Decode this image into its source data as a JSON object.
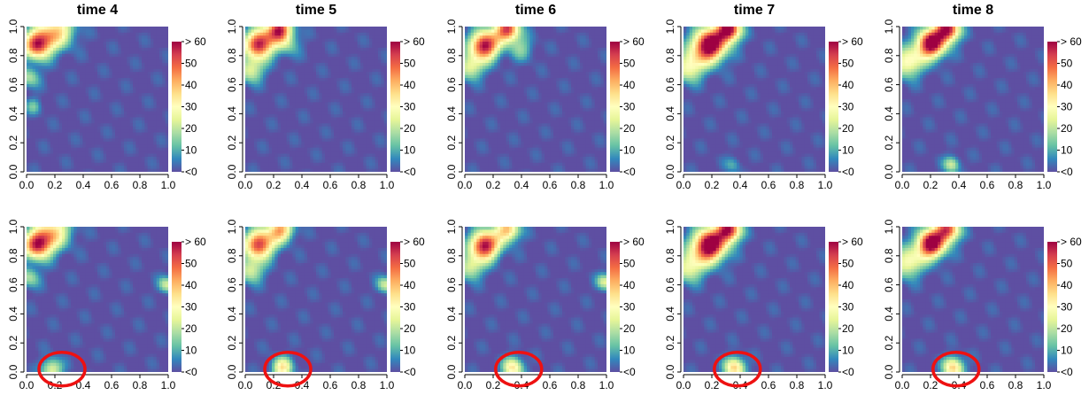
{
  "chart_data": {
    "type": "heatmap",
    "colorbar": {
      "labels": [
        "> 60",
        "50",
        "40",
        "30",
        "20",
        "10",
        "<0"
      ],
      "colors": [
        "#9E0142",
        "#D53E4F",
        "#F46D43",
        "#FDAE61",
        "#FEE08B",
        "#FFFFBF",
        "#E6F598",
        "#ABDDA4",
        "#66C2A5",
        "#3288BD",
        "#5E4FA2"
      ],
      "range": [
        0,
        60
      ]
    },
    "xlim": [
      0,
      1
    ],
    "ylim": [
      0,
      1
    ],
    "x_ticks": [
      "0.0",
      "0.2",
      "0.4",
      "0.6",
      "0.8",
      "1.0"
    ],
    "y_ticks": [
      "0.0",
      "0.2",
      "0.4",
      "0.6",
      "0.8",
      "1.0"
    ],
    "panels": [
      {
        "title": "time 4",
        "row": 0,
        "col": 0,
        "blobs": [
          [
            0.08,
            0.88,
            0.07,
            58
          ],
          [
            0.22,
            0.97,
            0.08,
            35
          ],
          [
            0.02,
            0.65,
            0.05,
            18
          ],
          [
            0.05,
            0.45,
            0.04,
            12
          ]
        ]
      },
      {
        "title": "time 5",
        "row": 0,
        "col": 1,
        "blobs": [
          [
            0.1,
            0.88,
            0.07,
            60
          ],
          [
            0.24,
            0.98,
            0.06,
            55
          ],
          [
            0.04,
            0.7,
            0.06,
            25
          ],
          [
            0.3,
            0.88,
            0.06,
            14
          ]
        ]
      },
      {
        "title": "time 6",
        "row": 0,
        "col": 2,
        "blobs": [
          [
            0.14,
            0.87,
            0.07,
            62
          ],
          [
            0.3,
            0.98,
            0.06,
            55
          ],
          [
            0.04,
            0.72,
            0.06,
            26
          ],
          [
            0.4,
            0.85,
            0.06,
            14
          ]
        ]
      },
      {
        "title": "time 7",
        "row": 0,
        "col": 3,
        "blobs": [
          [
            0.18,
            0.87,
            0.08,
            70
          ],
          [
            0.32,
            0.98,
            0.06,
            62
          ],
          [
            0.04,
            0.72,
            0.07,
            30
          ],
          [
            0.35,
            0.05,
            0.04,
            10
          ]
        ]
      },
      {
        "title": "time 8",
        "row": 0,
        "col": 4,
        "blobs": [
          [
            0.2,
            0.88,
            0.07,
            66
          ],
          [
            0.32,
            0.98,
            0.06,
            60
          ],
          [
            0.04,
            0.75,
            0.07,
            32
          ],
          [
            0.35,
            0.05,
            0.04,
            22
          ]
        ]
      },
      {
        "title": "",
        "row": 1,
        "col": 0,
        "circle": [
          0.25,
          0.02
        ],
        "blobs": [
          [
            0.08,
            0.88,
            0.07,
            58
          ],
          [
            0.2,
            0.97,
            0.08,
            32
          ],
          [
            0.02,
            0.65,
            0.05,
            18
          ],
          [
            0.18,
            0.02,
            0.05,
            26
          ],
          [
            0.99,
            0.6,
            0.04,
            22
          ]
        ]
      },
      {
        "title": "",
        "row": 1,
        "col": 1,
        "circle": [
          0.3,
          0.02
        ],
        "blobs": [
          [
            0.1,
            0.88,
            0.07,
            56
          ],
          [
            0.25,
            0.98,
            0.06,
            42
          ],
          [
            0.04,
            0.7,
            0.06,
            24
          ],
          [
            0.26,
            0.03,
            0.05,
            34
          ],
          [
            0.99,
            0.6,
            0.04,
            22
          ]
        ]
      },
      {
        "title": "",
        "row": 1,
        "col": 2,
        "circle": [
          0.38,
          0.02
        ],
        "blobs": [
          [
            0.14,
            0.87,
            0.07,
            62
          ],
          [
            0.3,
            0.98,
            0.06,
            40
          ],
          [
            0.04,
            0.72,
            0.06,
            24
          ],
          [
            0.34,
            0.03,
            0.05,
            34
          ],
          [
            0.99,
            0.62,
            0.04,
            24
          ]
        ]
      },
      {
        "title": "",
        "row": 1,
        "col": 3,
        "circle": [
          0.38,
          0.02
        ],
        "blobs": [
          [
            0.18,
            0.87,
            0.08,
            70
          ],
          [
            0.32,
            0.98,
            0.06,
            58
          ],
          [
            0.04,
            0.72,
            0.07,
            28
          ],
          [
            0.36,
            0.03,
            0.05,
            38
          ]
        ]
      },
      {
        "title": "",
        "row": 1,
        "col": 4,
        "circle": [
          0.38,
          0.02
        ],
        "blobs": [
          [
            0.2,
            0.88,
            0.07,
            66
          ],
          [
            0.32,
            0.98,
            0.06,
            52
          ],
          [
            0.04,
            0.75,
            0.07,
            30
          ],
          [
            0.36,
            0.03,
            0.05,
            38
          ]
        ]
      }
    ]
  }
}
